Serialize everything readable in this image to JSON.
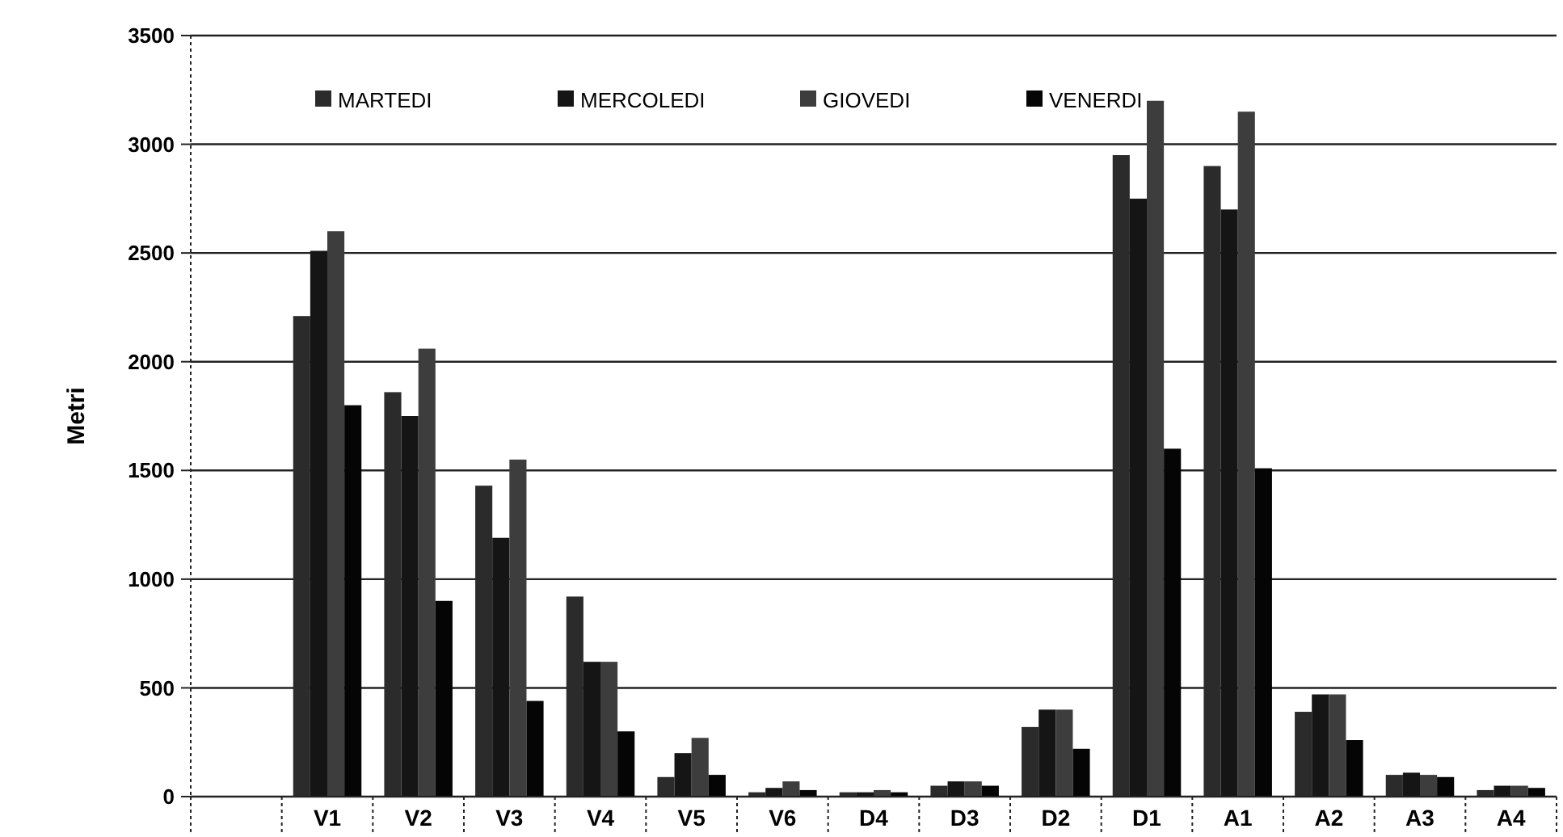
{
  "chart_data": {
    "type": "bar",
    "ylabel": "Metri",
    "categories": [
      null,
      "V1",
      "V2",
      "V3",
      "V4",
      "V5",
      "V6",
      "D4",
      "D3",
      "D2",
      "D1",
      "A1",
      "A2",
      "A3",
      "A4"
    ],
    "series": [
      {
        "name": "MARTEDI",
        "color": "#2b2b2b",
        "values": [
          null,
          2210,
          1860,
          1430,
          920,
          90,
          20,
          20,
          50,
          320,
          2950,
          2900,
          390,
          100,
          30
        ]
      },
      {
        "name": "MERCOLEDI",
        "color": "#151515",
        "values": [
          null,
          2510,
          1750,
          1190,
          620,
          200,
          40,
          20,
          70,
          400,
          2750,
          2700,
          470,
          110,
          50
        ]
      },
      {
        "name": "GIOVEDI",
        "color": "#3d3d3d",
        "values": [
          null,
          2600,
          2060,
          1550,
          620,
          270,
          70,
          30,
          70,
          400,
          3200,
          3150,
          470,
          100,
          50
        ]
      },
      {
        "name": "VENERDI",
        "color": "#050505",
        "values": [
          null,
          1800,
          900,
          440,
          300,
          100,
          30,
          20,
          50,
          220,
          1600,
          1510,
          260,
          90,
          40
        ]
      }
    ],
    "ylim": [
      0,
      3500
    ],
    "yticks": [
      0,
      500,
      1000,
      1500,
      2000,
      2500,
      3000,
      3500
    ],
    "grid": "y",
    "legend": "top"
  }
}
